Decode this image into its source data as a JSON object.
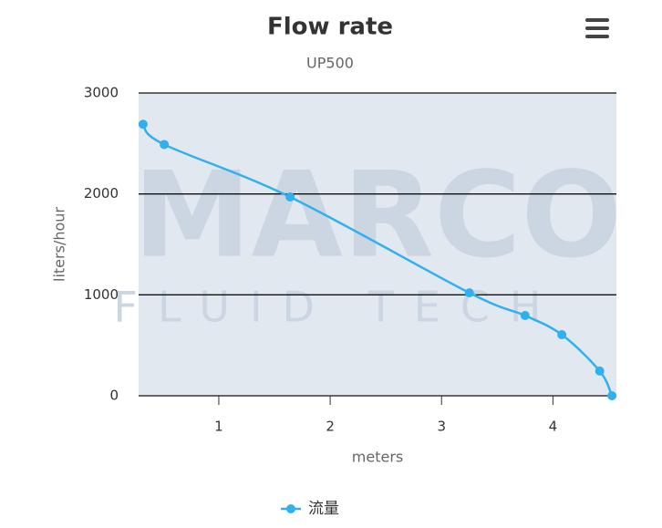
{
  "chart_data": {
    "type": "line",
    "title": "Flow rate",
    "subtitle": "UP500",
    "x_label": "meters",
    "y_label": "liters/hour",
    "watermark": [
      "MARCO",
      "FLUID TECH"
    ],
    "x": [
      0.32,
      0.51,
      1.64,
      3.25,
      3.75,
      4.08,
      4.42,
      4.53
    ],
    "series": [
      {
        "name": "流量",
        "color": "#2fb1f0",
        "values": [
          2690,
          2490,
          1970,
          1020,
          795,
          605,
          245,
          0
        ]
      }
    ],
    "xlim": [
      0.28,
      4.57
    ],
    "xticks": [
      1,
      2,
      3,
      4
    ],
    "ylim": [
      0,
      3000
    ],
    "yticks": [
      0,
      1000,
      2000,
      3000
    ],
    "grid": true
  }
}
